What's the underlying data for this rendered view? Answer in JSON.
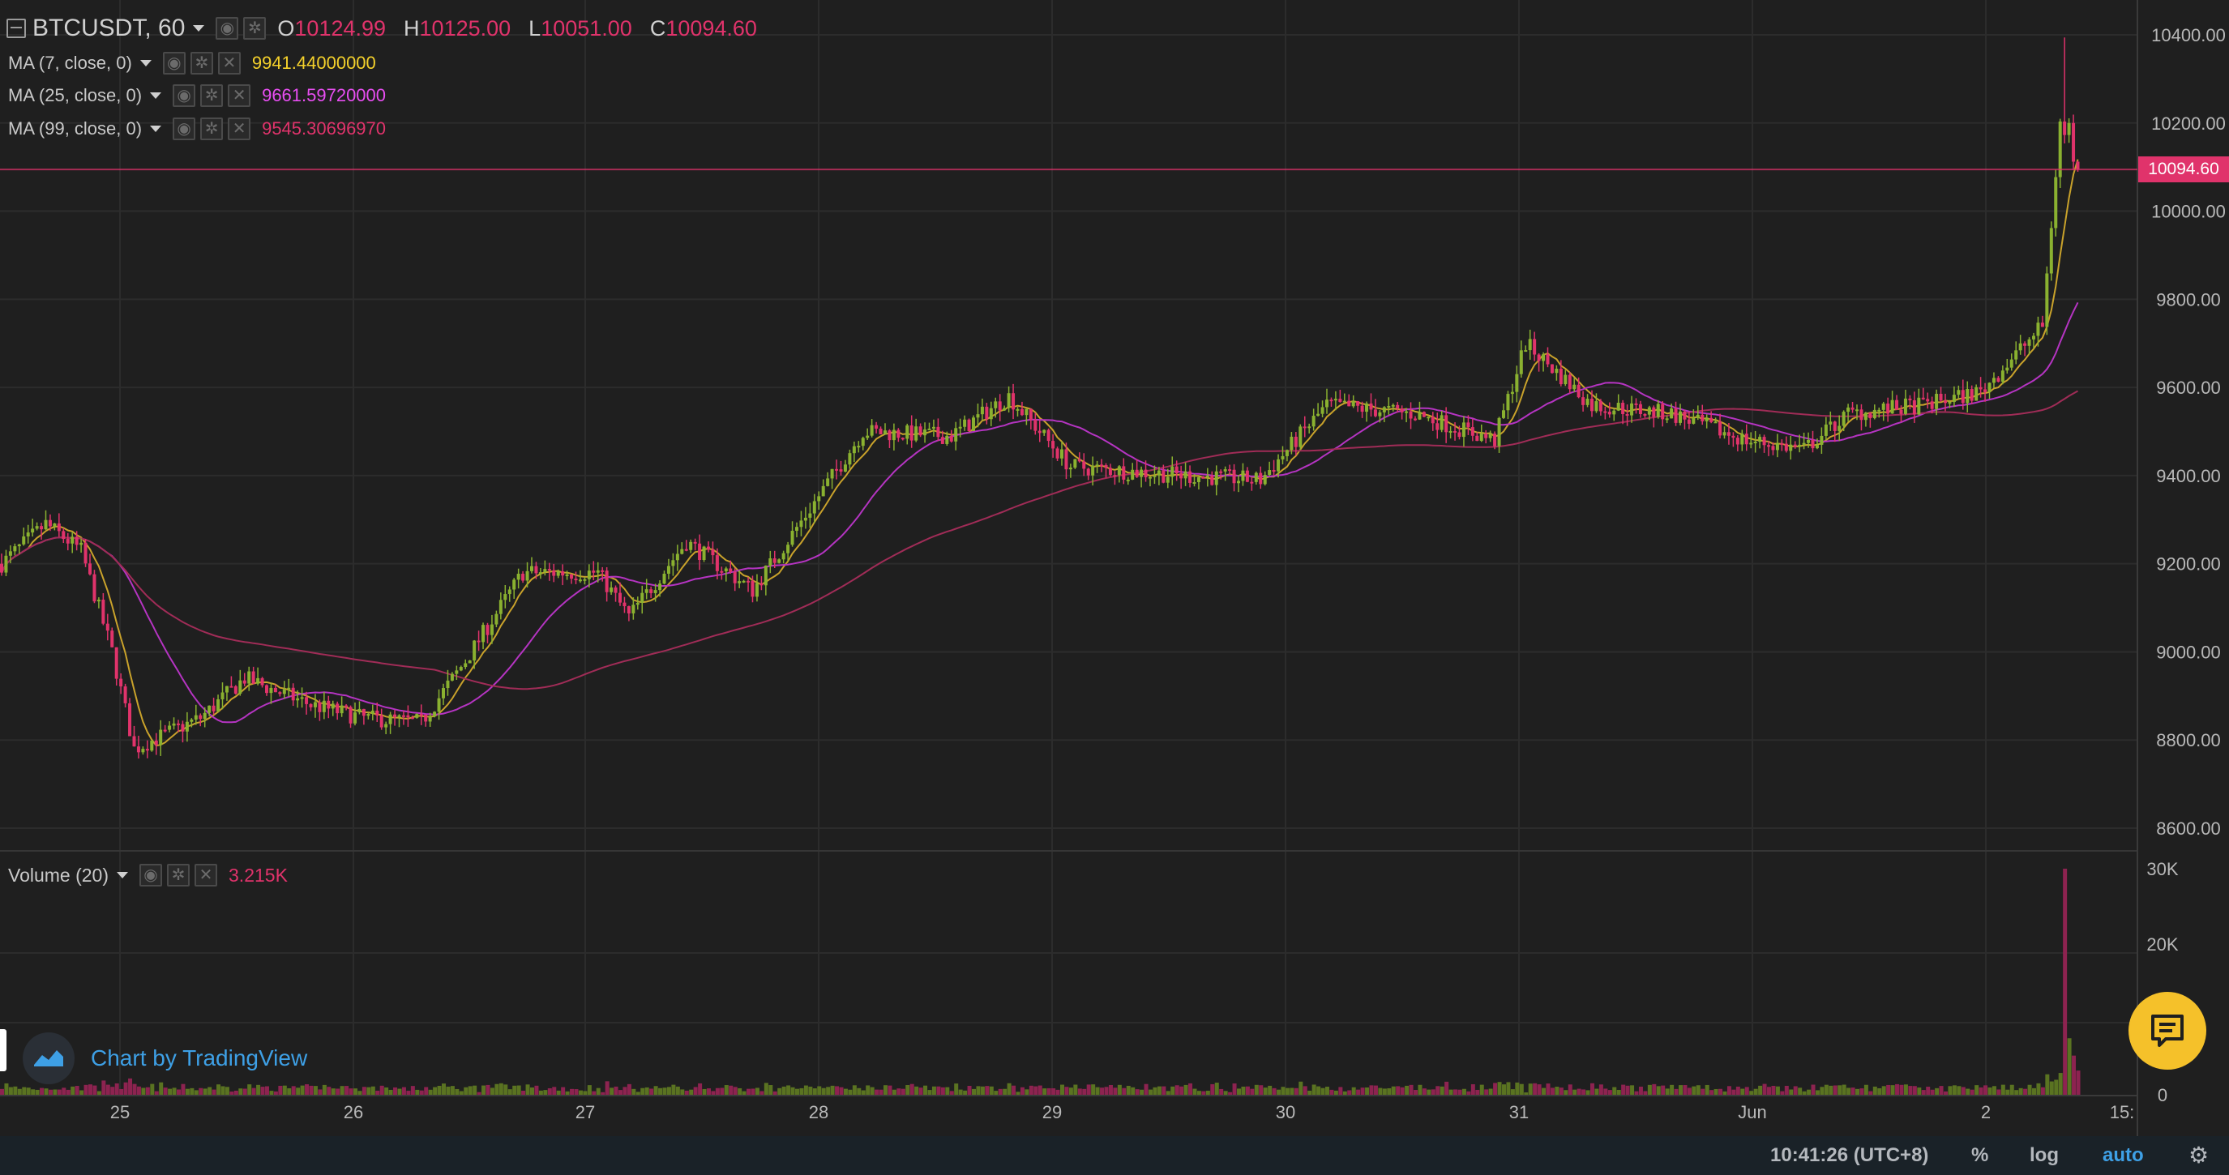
{
  "symbol": {
    "name": "BTCUSDT, 60",
    "o_label": "O",
    "o": "10124.99",
    "h_label": "H",
    "h": "10125.00",
    "l_label": "L",
    "l": "10051.00",
    "c_label": "C",
    "c": "10094.60"
  },
  "indicators": [
    {
      "label": "MA (7, close, 0)",
      "value": "9941.44000000",
      "color": "#f5d12b"
    },
    {
      "label": "MA (25, close, 0)",
      "value": "9661.59720000",
      "color": "#e84ef2"
    },
    {
      "label": "MA (99, close, 0)",
      "value": "9545.30696970",
      "color": "#e0336b"
    }
  ],
  "volume_indicator": {
    "label": "Volume (20)",
    "value": "3.215K"
  },
  "last_price_label": "10094.60",
  "price_axis": [
    "10400.00",
    "10200.00",
    "10000.00",
    "9800.00",
    "9600.00",
    "9400.00",
    "9200.00",
    "9000.00",
    "8800.00",
    "8600.00"
  ],
  "volume_axis": [
    "30K",
    "20K",
    "0"
  ],
  "time_axis": [
    "25",
    "26",
    "27",
    "28",
    "29",
    "30",
    "31",
    "Jun",
    "2",
    "15:"
  ],
  "branding": {
    "text": "Chart by TradingView"
  },
  "status_bar": {
    "clock": "10:41:26 (UTC+8)",
    "percent": "%",
    "log": "log",
    "auto": "auto"
  },
  "colors": {
    "up": "#8ab130",
    "down": "#e0336b",
    "ma7": "#c9a22b",
    "ma25": "#b534c2",
    "ma99": "#a02c57",
    "grid": "#2c2c2c",
    "volume_up": "#5a7321",
    "volume_down": "#8d2350"
  },
  "chart_data": {
    "type": "candlestick",
    "timeframe": "60",
    "y_range": [
      8550,
      10420
    ],
    "volume_range": [
      0,
      30000
    ],
    "anchors": [
      [
        0,
        9200
      ],
      [
        10,
        9290
      ],
      [
        18,
        9230
      ],
      [
        25,
        9000
      ],
      [
        30,
        8780
      ],
      [
        45,
        8850
      ],
      [
        55,
        8940
      ],
      [
        70,
        8880
      ],
      [
        82,
        8850
      ],
      [
        95,
        8840
      ],
      [
        105,
        8980
      ],
      [
        118,
        9180
      ],
      [
        135,
        9180
      ],
      [
        142,
        9080
      ],
      [
        155,
        9250
      ],
      [
        170,
        9140
      ],
      [
        182,
        9310
      ],
      [
        195,
        9500
      ],
      [
        215,
        9490
      ],
      [
        228,
        9580
      ],
      [
        242,
        9420
      ],
      [
        268,
        9400
      ],
      [
        285,
        9390
      ],
      [
        300,
        9560
      ],
      [
        320,
        9540
      ],
      [
        338,
        9480
      ],
      [
        345,
        9700
      ],
      [
        360,
        9560
      ],
      [
        378,
        9540
      ],
      [
        395,
        9480
      ],
      [
        408,
        9460
      ],
      [
        418,
        9540
      ],
      [
        435,
        9560
      ],
      [
        448,
        9590
      ],
      [
        462,
        9740
      ],
      [
        466,
        10200
      ],
      [
        470,
        10094
      ]
    ],
    "last_close": 10094.6,
    "last_volume": 3215,
    "ma_periods": [
      7,
      25,
      99
    ]
  }
}
